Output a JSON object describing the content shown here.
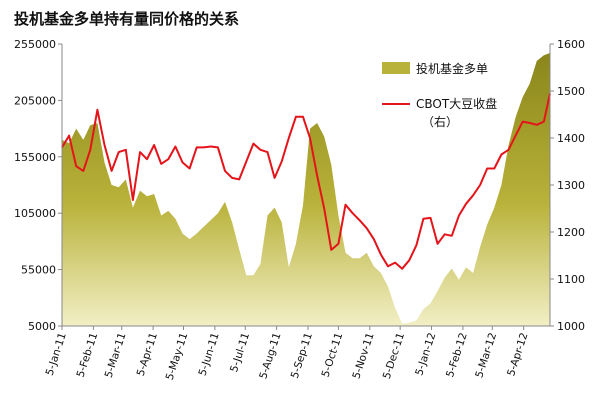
{
  "colors": {
    "area": "#b9b23a",
    "line": "#e4141a"
  },
  "chart_data": {
    "type": "area+line",
    "title": "投机基金多单持有量同价格的关系",
    "left_axis": {
      "ylim": [
        5000,
        255000
      ],
      "ticks": [
        5000,
        55000,
        105000,
        155000,
        205000,
        255000
      ]
    },
    "right_axis": {
      "ylim": [
        1000,
        1600
      ],
      "ticks": [
        1000,
        1100,
        1200,
        1300,
        1400,
        1500,
        1600
      ]
    },
    "x_ticks": [
      "5-Jan-11",
      "5-Feb-11",
      "5-Mar-11",
      "5-Apr-11",
      "5-May-11",
      "5-Jun-11",
      "5-Jul-11",
      "5-Aug-11",
      "5-Sep-11",
      "5-Oct-11",
      "5-Nov-11",
      "5-Dec-11",
      "5-Jan-12",
      "5-Feb-12",
      "5-Mar-12",
      "5-Apr-12"
    ],
    "x_start": "2011-01-05",
    "x_end": "2012-05-01",
    "series": [
      {
        "name": "投机基金多单",
        "axis": "left",
        "type": "area",
        "x": [
          "2011-01-05",
          "2011-01-12",
          "2011-01-19",
          "2011-01-26",
          "2011-02-02",
          "2011-02-09",
          "2011-02-16",
          "2011-02-23",
          "2011-03-02",
          "2011-03-09",
          "2011-03-16",
          "2011-03-23",
          "2011-03-30",
          "2011-04-06",
          "2011-04-13",
          "2011-04-20",
          "2011-04-27",
          "2011-05-04",
          "2011-05-11",
          "2011-05-18",
          "2011-05-25",
          "2011-06-01",
          "2011-06-08",
          "2011-06-15",
          "2011-06-22",
          "2011-06-29",
          "2011-07-06",
          "2011-07-13",
          "2011-07-20",
          "2011-07-27",
          "2011-08-03",
          "2011-08-10",
          "2011-08-17",
          "2011-08-24",
          "2011-08-31",
          "2011-09-07",
          "2011-09-14",
          "2011-09-21",
          "2011-09-28",
          "2011-10-05",
          "2011-10-12",
          "2011-10-19",
          "2011-10-26",
          "2011-11-02",
          "2011-11-09",
          "2011-11-16",
          "2011-11-23",
          "2011-11-30",
          "2011-12-07",
          "2011-12-14",
          "2011-12-21",
          "2011-12-28",
          "2012-01-04",
          "2012-01-11",
          "2012-01-18",
          "2012-01-25",
          "2012-02-01",
          "2012-02-08",
          "2012-02-15",
          "2012-02-22",
          "2012-02-29",
          "2012-03-07",
          "2012-03-14",
          "2012-03-21",
          "2012-03-28",
          "2012-04-04",
          "2012-04-11",
          "2012-04-18",
          "2012-04-25",
          "2012-05-01"
        ],
        "values": [
          170000,
          167000,
          180000,
          170000,
          183000,
          185000,
          150000,
          130000,
          128000,
          135000,
          110000,
          125000,
          120000,
          122000,
          103000,
          107000,
          100000,
          87000,
          82000,
          87000,
          93000,
          99000,
          105000,
          115000,
          97000,
          73000,
          50000,
          50000,
          60000,
          103000,
          110000,
          97000,
          57000,
          78000,
          112000,
          180000,
          185000,
          173000,
          148000,
          103000,
          70000,
          65000,
          65000,
          70000,
          58000,
          52000,
          40000,
          21000,
          7000,
          8000,
          10000,
          20000,
          25000,
          36000,
          48000,
          56000,
          46000,
          57000,
          52000,
          75000,
          95000,
          110000,
          130000,
          165000,
          190000,
          208000,
          220000,
          240000,
          245000,
          247000
        ]
      },
      {
        "name": "CBOT大豆收盘（右）",
        "axis": "right",
        "type": "line",
        "x": [
          "2011-01-05",
          "2011-01-12",
          "2011-01-19",
          "2011-01-26",
          "2011-02-02",
          "2011-02-09",
          "2011-02-16",
          "2011-02-23",
          "2011-03-02",
          "2011-03-09",
          "2011-03-16",
          "2011-03-23",
          "2011-03-30",
          "2011-04-06",
          "2011-04-13",
          "2011-04-20",
          "2011-04-27",
          "2011-05-04",
          "2011-05-11",
          "2011-05-18",
          "2011-05-25",
          "2011-06-01",
          "2011-06-08",
          "2011-06-15",
          "2011-06-22",
          "2011-06-29",
          "2011-07-06",
          "2011-07-13",
          "2011-07-20",
          "2011-07-27",
          "2011-08-03",
          "2011-08-10",
          "2011-08-17",
          "2011-08-24",
          "2011-08-31",
          "2011-09-07",
          "2011-09-14",
          "2011-09-21",
          "2011-09-28",
          "2011-10-05",
          "2011-10-12",
          "2011-10-19",
          "2011-10-26",
          "2011-11-02",
          "2011-11-09",
          "2011-11-16",
          "2011-11-23",
          "2011-11-30",
          "2011-12-07",
          "2011-12-14",
          "2011-12-21",
          "2011-12-28",
          "2012-01-04",
          "2012-01-11",
          "2012-01-18",
          "2012-01-25",
          "2012-02-01",
          "2012-02-08",
          "2012-02-15",
          "2012-02-22",
          "2012-02-29",
          "2012-03-07",
          "2012-03-14",
          "2012-03-21",
          "2012-03-28",
          "2012-04-04",
          "2012-04-11",
          "2012-04-18",
          "2012-04-25",
          "2012-05-01"
        ],
        "values": [
          1380,
          1405,
          1340,
          1330,
          1375,
          1460,
          1385,
          1330,
          1370,
          1375,
          1268,
          1370,
          1355,
          1385,
          1345,
          1355,
          1382,
          1348,
          1335,
          1380,
          1380,
          1382,
          1380,
          1330,
          1315,
          1312,
          1350,
          1388,
          1375,
          1370,
          1315,
          1350,
          1400,
          1445,
          1445,
          1400,
          1320,
          1250,
          1162,
          1175,
          1258,
          1240,
          1225,
          1208,
          1185,
          1152,
          1127,
          1135,
          1122,
          1140,
          1172,
          1228,
          1230,
          1175,
          1195,
          1192,
          1235,
          1260,
          1278,
          1300,
          1335,
          1335,
          1365,
          1375,
          1405,
          1435,
          1432,
          1428,
          1435,
          1495
        ]
      }
    ]
  }
}
